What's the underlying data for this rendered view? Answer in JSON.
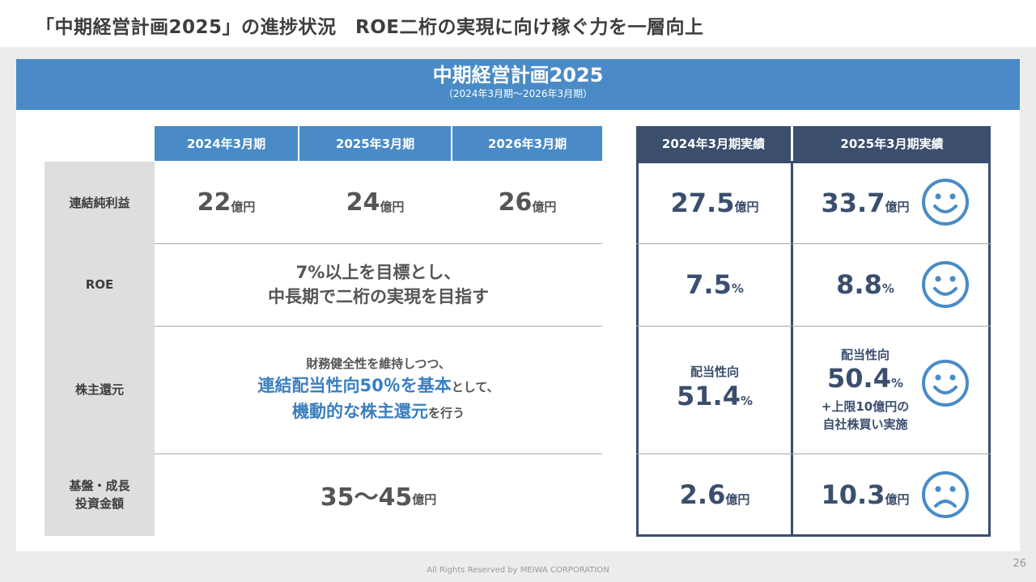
{
  "title": "「中期経営計画2025」の進捗状況　ROE二桁の実現に向け稼ぐ力を一層向上",
  "banner": {
    "title": "中期経営計画2025",
    "subtitle": "（2024年3月期〜2026年3月期）"
  },
  "plan_headers": [
    "2024年3月期",
    "2025年3月期",
    "2026年3月期"
  ],
  "result_headers": [
    "2024年3月期実績",
    "2025年3月期実績"
  ],
  "row_labels": {
    "net_income": "連結純利益",
    "roe": "ROE",
    "shareholder": "株主還元",
    "investment_line1": "基盤・成長",
    "investment_line2": "投資金額"
  },
  "plan": {
    "net_income": [
      {
        "value": "22",
        "unit": "億円"
      },
      {
        "value": "24",
        "unit": "億円"
      },
      {
        "value": "26",
        "unit": "億円"
      }
    ],
    "roe_line1": "7%以上を目標とし、",
    "roe_line2": "中長期で二桁の実現を目指す",
    "shareholder_line1": "財務健全性を維持しつつ、",
    "shareholder_line2_emph": "連結配当性向50％を基本",
    "shareholder_line2_rest": "として、",
    "shareholder_line3_emph": "機動的な株主還元",
    "shareholder_line3_rest": "を行う",
    "investment": {
      "value": "35〜45",
      "unit": "億円"
    }
  },
  "results": {
    "fy2024": {
      "net_income": {
        "value": "27.5",
        "unit": "億円"
      },
      "roe": {
        "value": "7.5",
        "unit": "%"
      },
      "payout_label": "配当性向",
      "payout": {
        "value": "51.4",
        "unit": "%"
      },
      "investment": {
        "value": "2.6",
        "unit": "億円"
      }
    },
    "fy2025": {
      "net_income": {
        "value": "33.7",
        "unit": "億円"
      },
      "roe": {
        "value": "8.8",
        "unit": "%"
      },
      "payout_label": "配当性向",
      "payout": {
        "value": "50.4",
        "unit": "%"
      },
      "payout_note1": "+上限10億円の",
      "payout_note2": "自社株買い実施",
      "investment": {
        "value": "10.3",
        "unit": "億円"
      }
    }
  },
  "evaluation_icons": [
    "smiley-face-icon",
    "smiley-face-icon",
    "smiley-face-icon",
    "sad-face-icon"
  ],
  "colors": {
    "plan_blue": "#4a8bc7",
    "result_navy": "#3b4e6e",
    "emphasis_blue": "#3a7fc0"
  },
  "footer": "All Rights Reserved by MEIWA CORPORATION",
  "page_number": "26"
}
